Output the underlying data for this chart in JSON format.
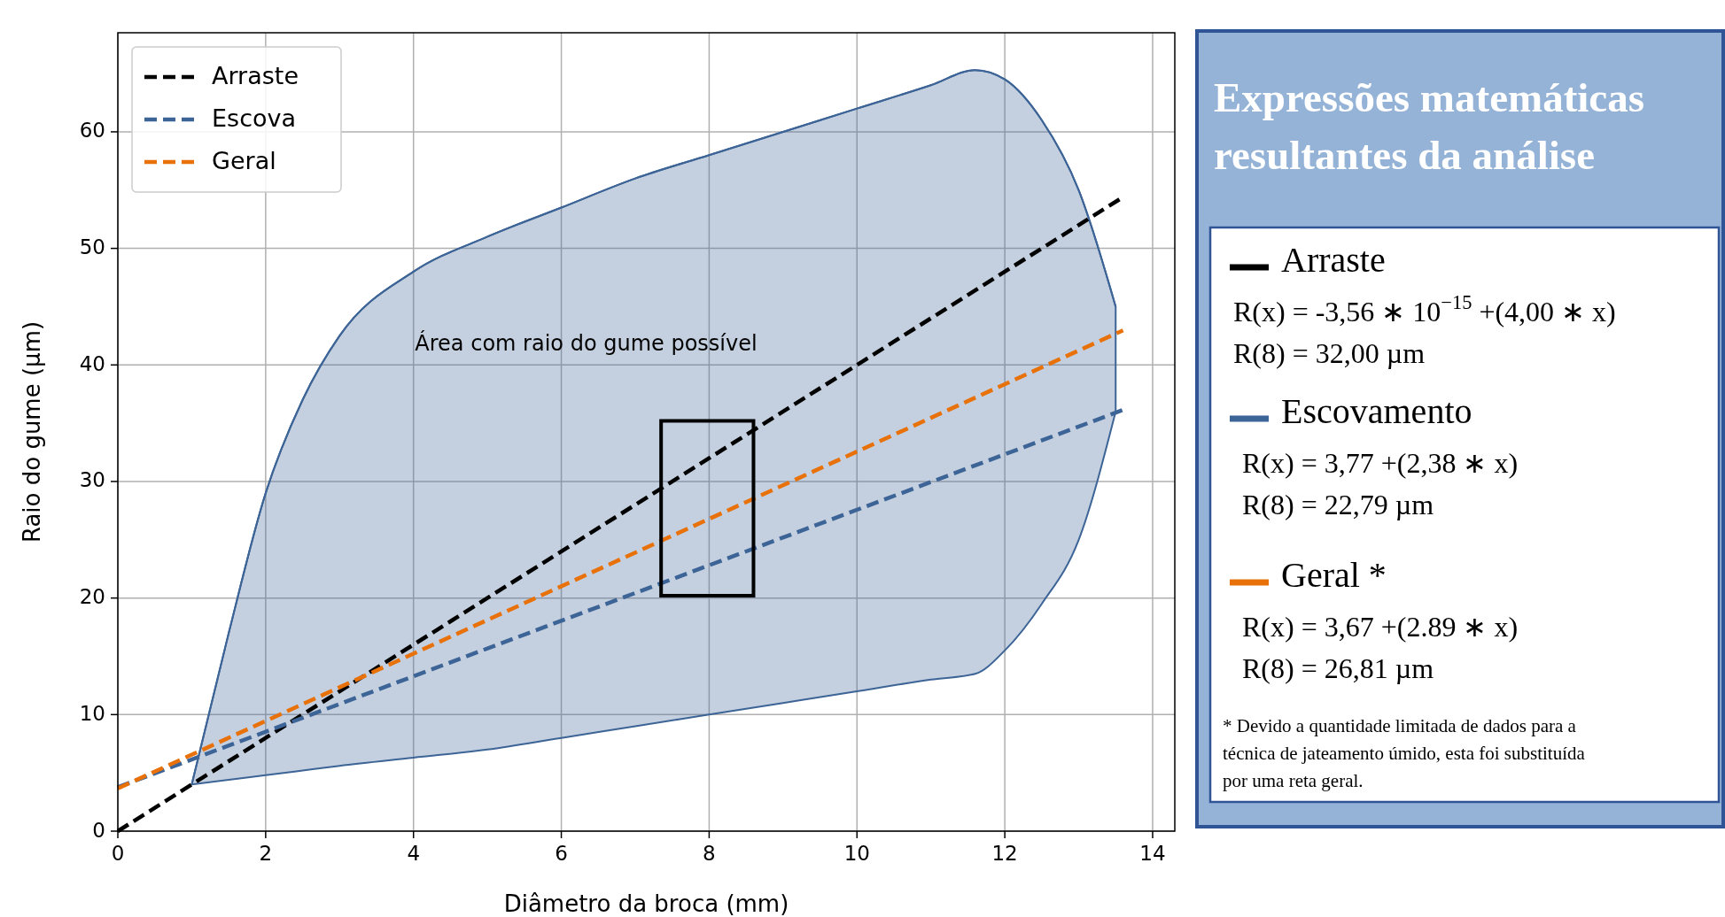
{
  "chart_data": [
    {
      "type": "line",
      "xlabel": "Diâmetro da broca (mm)",
      "ylabel": "Raio do gume (µm)",
      "xlim": [
        0,
        14.3
      ],
      "ylim": [
        0,
        68.5
      ],
      "xticks": [
        0,
        2,
        4,
        6,
        8,
        10,
        12,
        14
      ],
      "yticks": [
        0,
        10,
        20,
        30,
        40,
        50,
        60
      ],
      "grid": true,
      "legend": "top left",
      "line_style": "dashed",
      "marker": "none",
      "annotations": [
        "Área com raio do gume possível"
      ],
      "series": [
        {
          "type": "line",
          "line_style": "solid",
          "color": "#3d6496",
          "x": [
            1,
            1.5,
            2,
            2.5,
            3,
            4,
            5,
            6,
            7,
            8,
            9,
            10,
            11,
            11.6,
            12,
            12.5,
            13,
            13.5
          ],
          "lower": [
            4,
            4.4,
            4.8,
            5.2,
            5.6,
            6.3,
            7,
            8,
            9,
            10,
            11,
            12,
            13,
            13.5,
            15.5,
            19.5,
            25,
            36
          ],
          "upper": [
            4,
            17,
            29,
            37,
            42.5,
            48,
            51,
            53.5,
            56,
            58,
            60,
            62,
            64,
            65.3,
            64.5,
            61,
            55,
            45
          ],
          "values": [
            4,
            17,
            29,
            37,
            42.5,
            48,
            51,
            53.5,
            56,
            58,
            60,
            62,
            64,
            65.3,
            64.5,
            61,
            55,
            45
          ]
        },
        {
          "name": "Arraste",
          "color": "#000000",
          "x": [
            0,
            13.6
          ],
          "values": [
            0,
            54.4
          ]
        },
        {
          "name": "Escova",
          "color": "#3d6496",
          "x": [
            0,
            13.6
          ],
          "values": [
            3.77,
            36.14
          ]
        },
        {
          "name": "Geral",
          "color": "#e8710a",
          "x": [
            0,
            13.6
          ],
          "values": [
            3.67,
            42.97
          ]
        }
      ]
    },
    {
      "type": "other",
      "title": "Expressões matemáticas resultantes da análise",
      "annotations": [
        "Arraste",
        "R(x) = -3,56 ∗ 10$^{−15}$ +(4,00 ∗ x)",
        "R(8) = 32,00 µm",
        "Escovamento",
        "R(x) = 3,77 +(2,38 ∗ x)",
        "R(8) = 22,79 µm",
        "Geral *",
        "R(x) = 3,67 +(2.89 ∗ x)",
        "R(8) = 26,81 µm",
        "* Devido a quantidade limitada de dados para a técnica de jateamento úmido, esta foi substituída por uma reta geral."
      ]
    }
  ]
}
